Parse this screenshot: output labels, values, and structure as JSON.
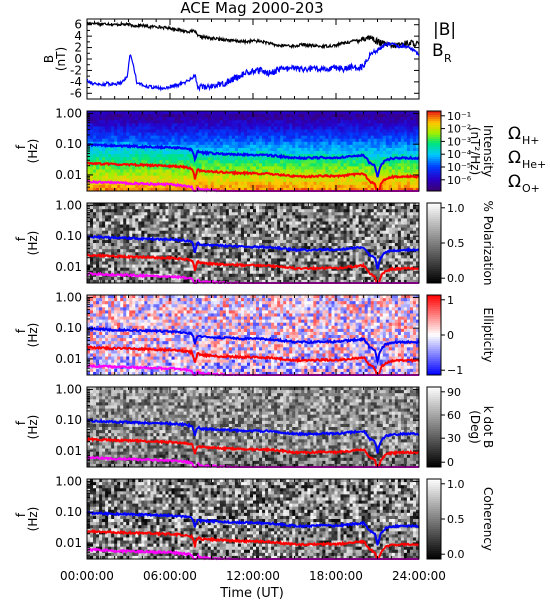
{
  "title": "ACE Mag 2000-203",
  "x_axis": {
    "label": "Time (UT)",
    "ticks": [
      "00:00:00",
      "06:00:00",
      "12:00:00",
      "18:00:00",
      "24:00:00"
    ],
    "range_hours": [
      0,
      24
    ]
  },
  "colors": {
    "h_plus": "#0000ff",
    "he_plus": "#ff0000",
    "o_plus": "#ff00ff",
    "B_total": "#000000",
    "B_R": "#0000ff"
  },
  "chart_data": [
    {
      "type": "line",
      "panel": "B",
      "ylabel": "B",
      "yunits": "(nT)",
      "ylim": [
        -7,
        7
      ],
      "yticks": [
        "6",
        "4",
        "2",
        "0",
        "-2",
        "-4",
        "-6"
      ],
      "legend": [
        "|B|",
        "B"
      ],
      "legend_sub": "R",
      "series": [
        {
          "name": "|B|",
          "x": [
            0,
            0.5,
            1,
            1.5,
            2,
            2.5,
            3,
            3.5,
            4,
            4.5,
            5,
            5.5,
            6,
            6.5,
            7,
            7.5,
            7.8,
            8,
            8.5,
            9,
            9.5,
            10,
            10.5,
            11,
            11.5,
            12,
            12.5,
            13,
            13.5,
            14,
            14.5,
            15,
            15.5,
            16,
            16.5,
            17,
            17.5,
            18,
            18.5,
            19,
            19.5,
            20,
            20.5,
            21,
            21.5,
            22,
            22.5,
            23,
            23.5,
            24
          ],
          "values": [
            6.2,
            6.3,
            6.1,
            6.2,
            6.0,
            6.1,
            6.0,
            5.8,
            5.9,
            5.6,
            5.7,
            5.5,
            5.4,
            5.2,
            4.9,
            4.8,
            4.9,
            4.0,
            3.8,
            3.6,
            3.5,
            3.4,
            3.2,
            3.1,
            3.0,
            3.2,
            3.1,
            2.9,
            2.5,
            2.3,
            2.4,
            2.2,
            2.5,
            2.4,
            2.3,
            2.2,
            2.3,
            2.4,
            2.8,
            3.0,
            3.3,
            3.6,
            3.8,
            3.0,
            2.6,
            2.2,
            2.5,
            2.7,
            2.8,
            2.6
          ]
        },
        {
          "name": "B_R",
          "x": [
            0,
            0.3,
            0.6,
            1,
            1.5,
            2,
            2.5,
            2.9,
            3.1,
            3.3,
            3.6,
            4,
            4.5,
            5,
            5.5,
            6,
            6.5,
            7,
            7.5,
            7.8,
            8,
            8.5,
            9,
            9.5,
            10,
            10.5,
            11,
            11.5,
            12,
            12.5,
            13,
            13.5,
            14,
            14.5,
            15,
            15.5,
            16,
            16.5,
            17,
            17.5,
            18,
            18.5,
            19,
            19.5,
            20,
            20.5,
            21,
            21.5,
            22,
            22.5,
            23,
            23.5,
            24
          ],
          "values": [
            -3.6,
            -4.2,
            -4.4,
            -4.5,
            -4.3,
            -4.4,
            -4.0,
            -3.2,
            0.8,
            -0.5,
            -4.0,
            -4.6,
            -4.8,
            -5.0,
            -5.2,
            -4.8,
            -4.6,
            -4.2,
            -3.5,
            -2.8,
            -4.8,
            -4.9,
            -4.7,
            -4.5,
            -4.2,
            -3.6,
            -3.0,
            -2.4,
            -2.2,
            -2.0,
            -2.4,
            -2.3,
            -1.6,
            -1.8,
            -1.5,
            -1.9,
            -1.8,
            -1.7,
            -1.9,
            -1.6,
            -1.5,
            -1.8,
            -1.4,
            -1.6,
            -1.2,
            1.0,
            1.5,
            2.4,
            2.8,
            2.2,
            2.3,
            1.7,
            0.6
          ]
        }
      ]
    },
    {
      "type": "heatmap",
      "panel": "spectral_intensity",
      "ylabel": "f",
      "yunits": "(Hz)",
      "yscale": "log",
      "ylim": [
        0.003,
        1.2
      ],
      "yticks": [
        "1.00",
        "0.10",
        "0.01"
      ],
      "colorbar_label": "Intensity",
      "colorbar_units": "(nT²/Hz)",
      "colorbar_ticks": [
        "10⁻¹",
        "10⁻²",
        "10⁻³",
        "10⁻⁴",
        "10⁻⁵",
        "10⁻⁶"
      ],
      "colorbar_range": [
        1e-06,
        0.1
      ],
      "legend": [
        {
          "base": "Ω",
          "sub": "H+",
          "color": "#0000ff"
        },
        {
          "base": "Ω",
          "sub": "He+",
          "color": "#ff0000"
        },
        {
          "base": "Ω",
          "sub": "O+",
          "color": "#ff00ff"
        }
      ]
    },
    {
      "type": "heatmap",
      "panel": "polarization",
      "ylabel": "f",
      "yunits": "(Hz)",
      "yscale": "log",
      "ylim": [
        0.003,
        1.2
      ],
      "yticks": [
        "1.00",
        "0.10",
        "0.01"
      ],
      "colorbar_label": "% Polarization",
      "colorbar_ticks": [
        "1.0",
        "0.5",
        "0.0"
      ],
      "colorbar_range": [
        0,
        1
      ]
    },
    {
      "type": "heatmap",
      "panel": "ellipticity",
      "ylabel": "f",
      "yunits": "(Hz)",
      "yscale": "log",
      "ylim": [
        0.003,
        1.2
      ],
      "yticks": [
        "1.00",
        "0.10",
        "0.01"
      ],
      "colorbar_label": "Ellipticity",
      "colorbar_ticks": [
        "1",
        "0",
        "−1"
      ],
      "colorbar_range": [
        -1,
        1
      ]
    },
    {
      "type": "heatmap",
      "panel": "k_dot_B",
      "ylabel": "f",
      "yunits": "(Hz)",
      "yscale": "log",
      "ylim": [
        0.003,
        1.2
      ],
      "yticks": [
        "1.00",
        "0.10",
        "0.01"
      ],
      "colorbar_label": "k dot B",
      "colorbar_units": "(Deg)",
      "colorbar_ticks": [
        "90",
        "60",
        "30",
        "0"
      ],
      "colorbar_range": [
        0,
        90
      ]
    },
    {
      "type": "heatmap",
      "panel": "coherency",
      "ylabel": "f",
      "yunits": "(Hz)",
      "yscale": "log",
      "ylim": [
        0.003,
        1.2
      ],
      "yticks": [
        "1.00",
        "0.10",
        "0.01"
      ],
      "colorbar_label": "Coherency",
      "colorbar_ticks": [
        "1.0",
        "0.5",
        "0.0"
      ],
      "colorbar_range": [
        0,
        1
      ]
    }
  ],
  "gyrofrequency_lines": {
    "x": [
      0,
      1,
      2,
      3,
      4,
      5,
      6,
      7,
      7.6,
      7.8,
      8.0,
      8.2,
      9,
      10,
      11,
      12,
      13,
      14,
      15,
      16,
      17,
      18,
      19,
      20,
      20.4,
      20.8,
      21.0,
      21.3,
      21.6,
      22,
      23,
      24
    ],
    "H_plus_Hz": [
      0.095,
      0.092,
      0.088,
      0.086,
      0.083,
      0.08,
      0.078,
      0.072,
      0.065,
      0.03,
      0.06,
      0.053,
      0.051,
      0.048,
      0.046,
      0.045,
      0.044,
      0.04,
      0.036,
      0.035,
      0.037,
      0.036,
      0.04,
      0.044,
      0.025,
      0.02,
      0.008,
      0.022,
      0.03,
      0.034,
      0.036,
      0.035
    ],
    "He_plus_Hz": [
      0.024,
      0.023,
      0.022,
      0.0215,
      0.021,
      0.02,
      0.0195,
      0.018,
      0.0163,
      0.0075,
      0.015,
      0.0133,
      0.0128,
      0.012,
      0.0115,
      0.0113,
      0.011,
      0.01,
      0.009,
      0.0088,
      0.0093,
      0.009,
      0.01,
      0.011,
      0.0063,
      0.005,
      0.002,
      0.0055,
      0.0075,
      0.0085,
      0.009,
      0.0088
    ],
    "O_plus_Hz": [
      0.006,
      0.0058,
      0.0055,
      0.0054,
      0.0052,
      0.005,
      0.0049,
      0.0045,
      0.0041,
      0.0019,
      0.0038,
      0.0033,
      0.0032,
      0.003,
      0.0029,
      0.0028,
      0.0028,
      0.0025,
      0.0023,
      0.0022,
      0.0023,
      0.0023,
      0.0025,
      0.0028,
      0.0016,
      0.0013,
      0.0005,
      0.0014,
      0.0019,
      0.0021,
      0.0023,
      0.0022
    ]
  }
}
